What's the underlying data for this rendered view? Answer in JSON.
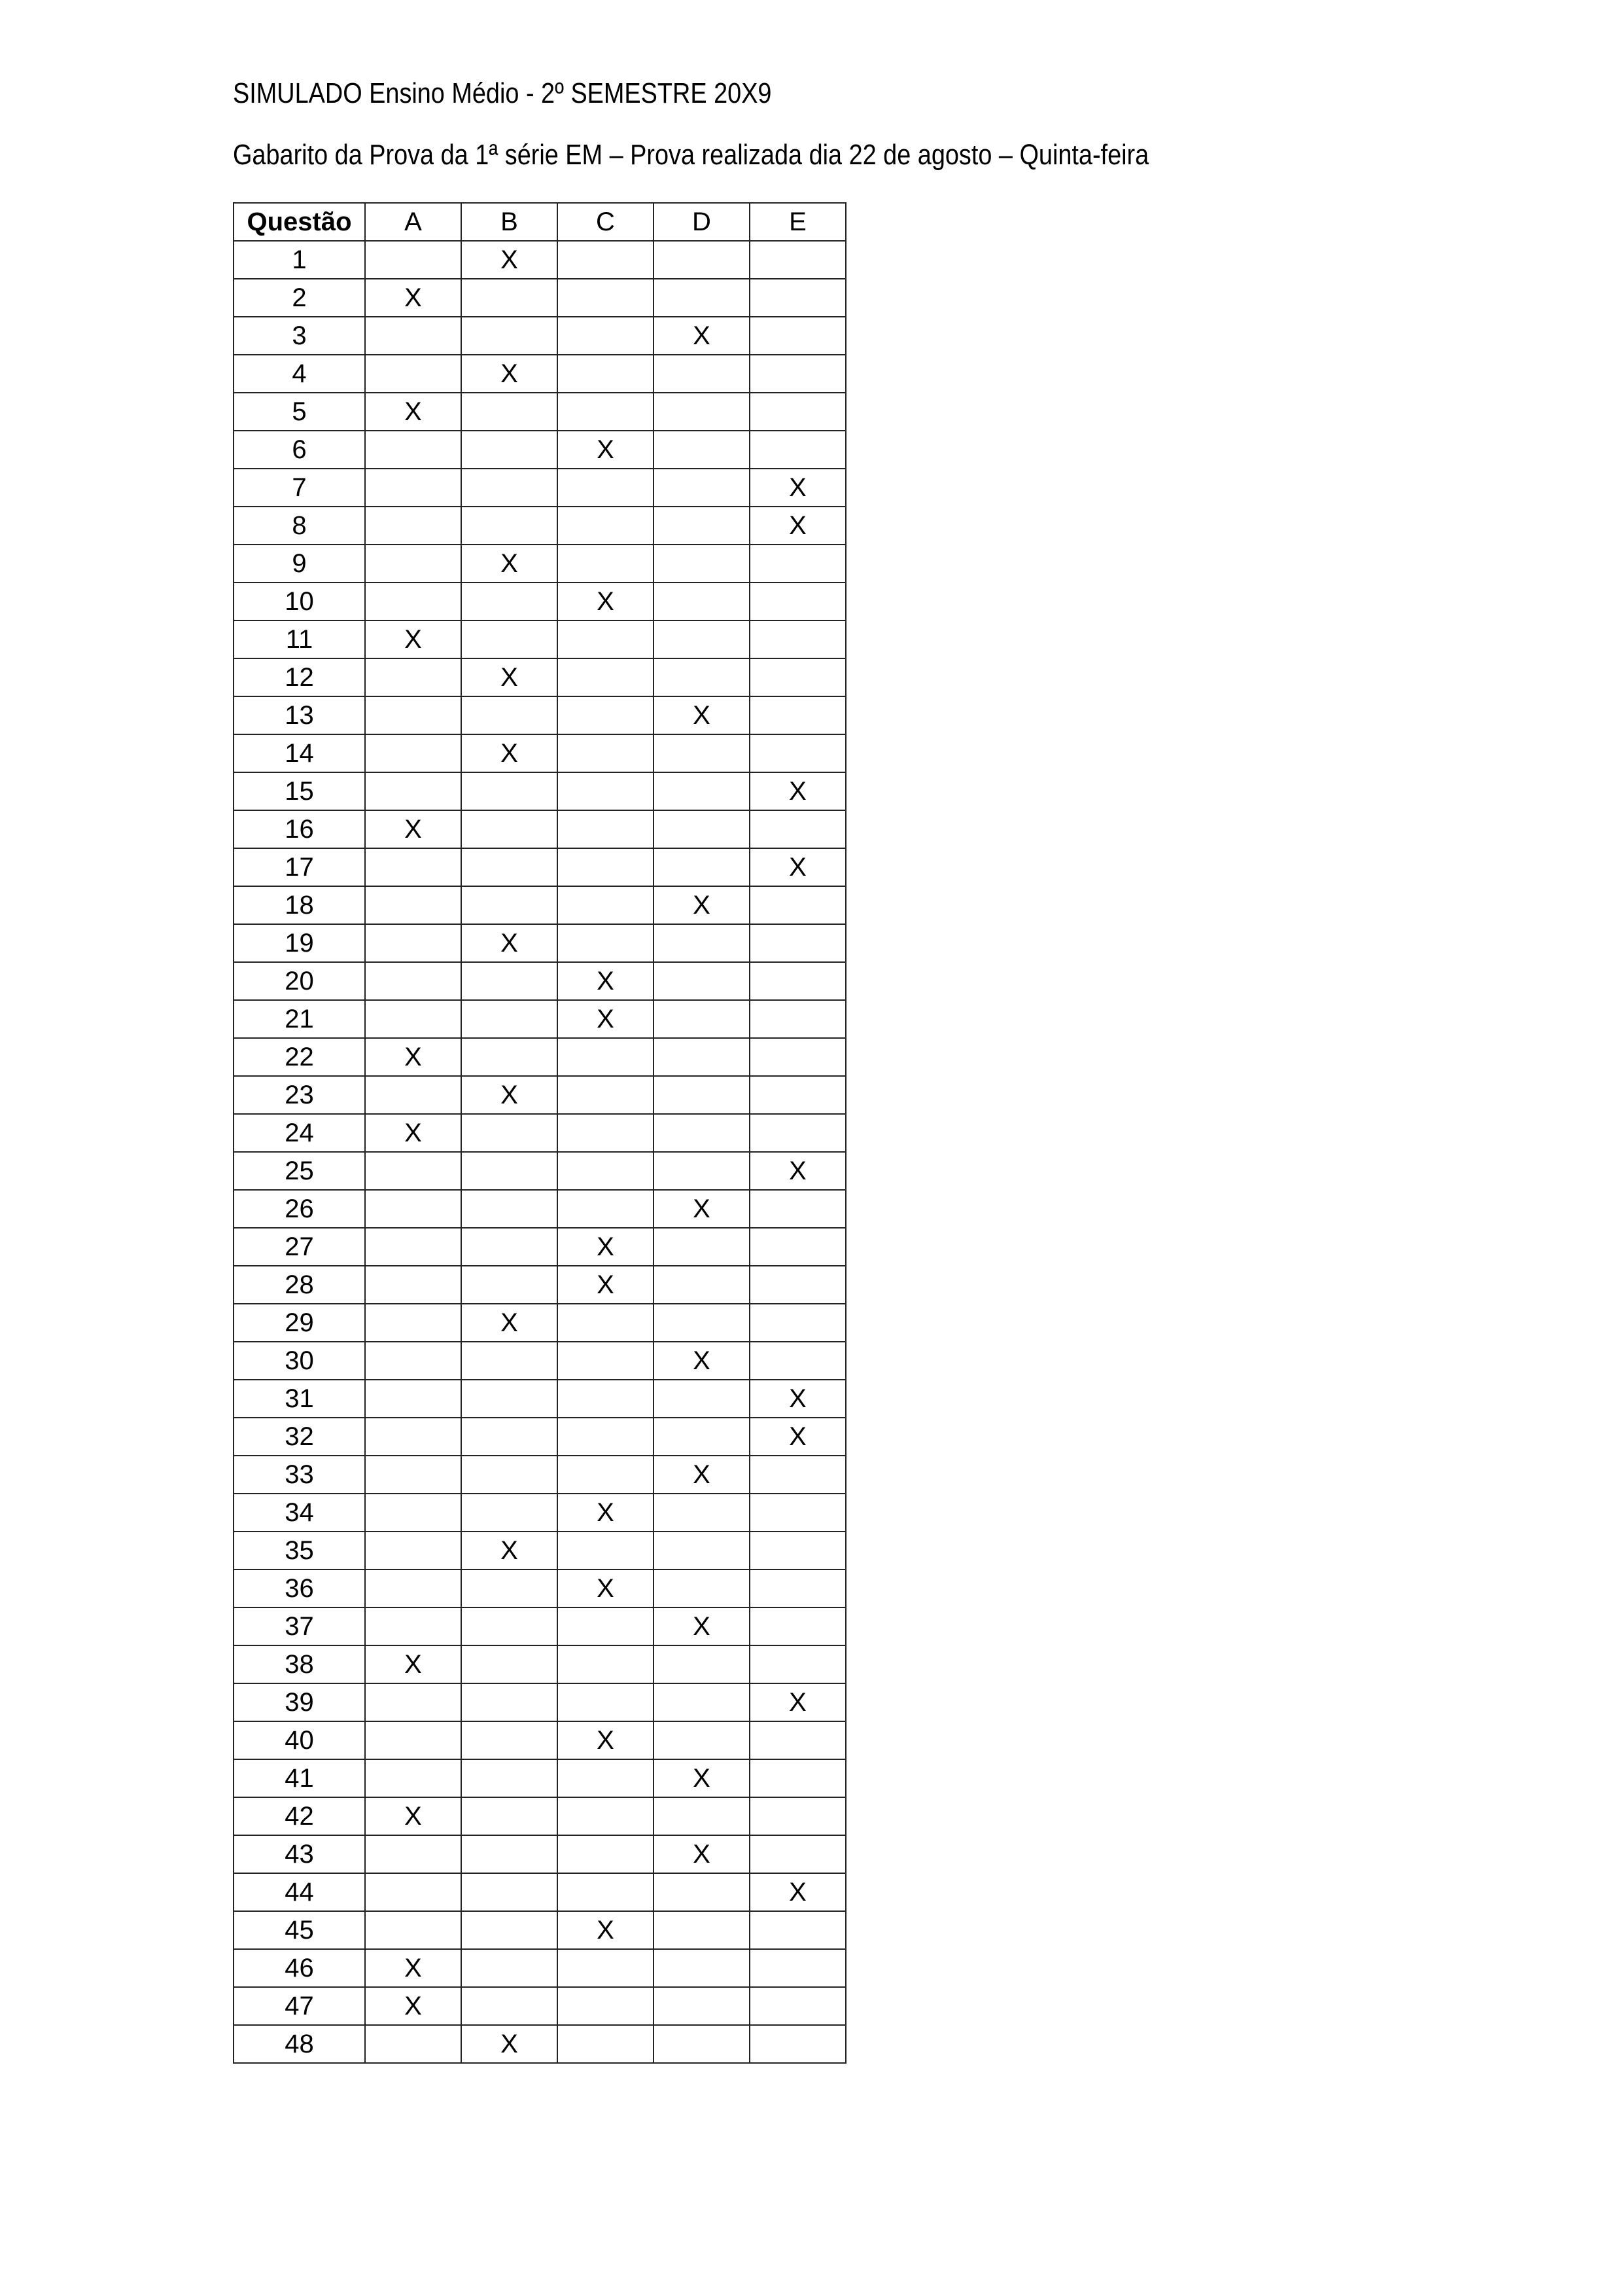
{
  "header": {
    "title": "SIMULADO Ensino Médio - 2º SEMESTRE 20X9",
    "subtitle": "Gabarito da Prova da 1ª série EM – Prova realizada dia 22 de agosto – Quinta-feira"
  },
  "table": {
    "columns": [
      "Questão",
      "A",
      "B",
      "C",
      "D",
      "E"
    ],
    "mark": "X",
    "answers": [
      "B",
      "A",
      "D",
      "B",
      "A",
      "C",
      "E",
      "E",
      "B",
      "C",
      "A",
      "B",
      "D",
      "B",
      "E",
      "A",
      "E",
      "D",
      "B",
      "C",
      "C",
      "A",
      "B",
      "A",
      "E",
      "D",
      "C",
      "C",
      "B",
      "D",
      "E",
      "E",
      "D",
      "C",
      "B",
      "C",
      "D",
      "A",
      "E",
      "C",
      "D",
      "A",
      "D",
      "E",
      "C",
      "A",
      "A",
      "B"
    ]
  }
}
